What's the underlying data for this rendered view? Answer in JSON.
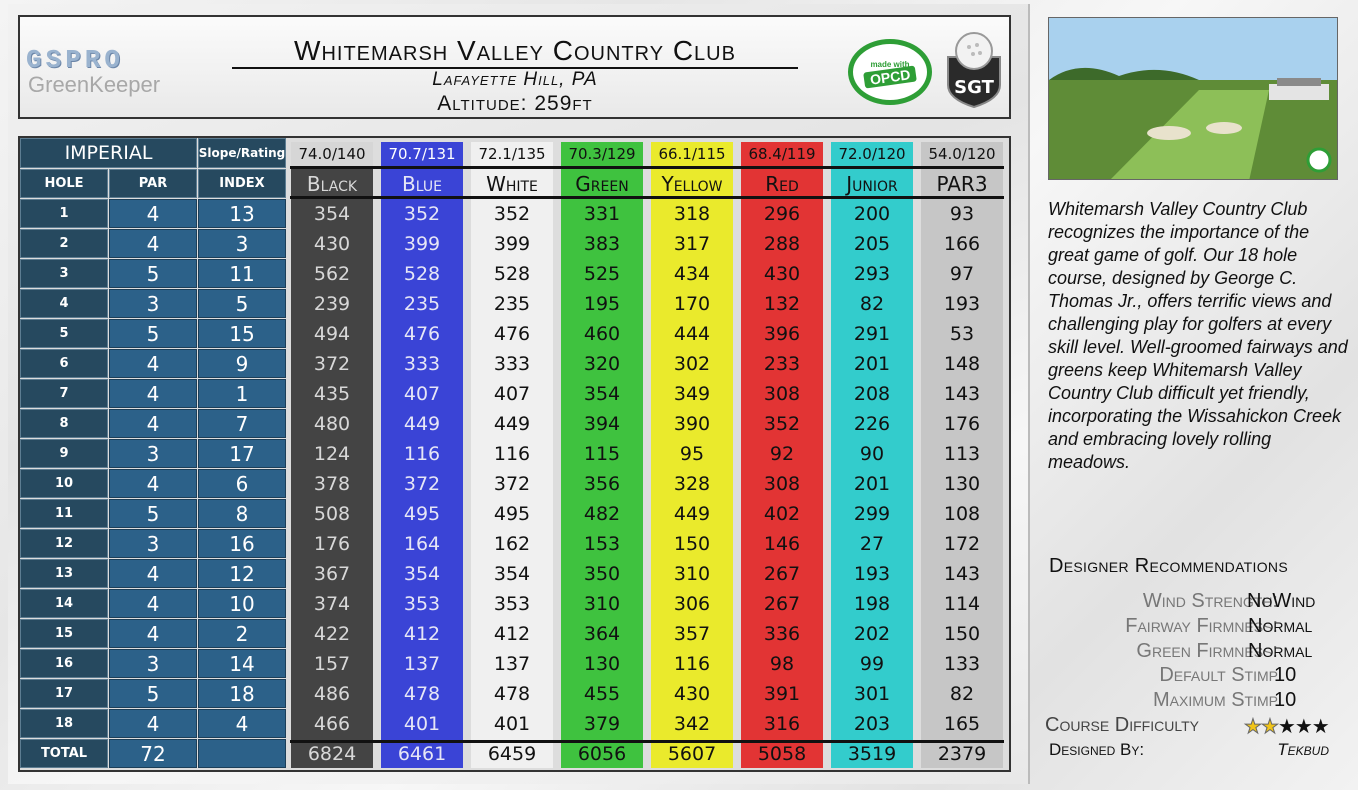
{
  "header": {
    "logo_gspro": "GSPRO",
    "logo_greenkeeper": "GreenKeeper",
    "title": "Whitemarsh Valley Country Club",
    "location": "Lafayette Hill, PA",
    "altitude": "Altitude: 259ft",
    "opcd_top": "made with",
    "opcd_mid": "OPCD",
    "sgt_label": "SGT"
  },
  "scorecard": {
    "units_label": "IMPERIAL",
    "slope_rating_label": "Slope/Rating",
    "hole_header": "HOLE",
    "par_header": "PAR",
    "index_header": "INDEX",
    "total_label": "TOTAL",
    "total_par": "72",
    "holes": [
      "1",
      "2",
      "3",
      "4",
      "5",
      "6",
      "7",
      "8",
      "9",
      "10",
      "11",
      "12",
      "13",
      "14",
      "15",
      "16",
      "17",
      "18"
    ],
    "pars": [
      "4",
      "4",
      "5",
      "3",
      "5",
      "4",
      "4",
      "4",
      "3",
      "4",
      "5",
      "3",
      "4",
      "4",
      "4",
      "3",
      "5",
      "4"
    ],
    "indexes": [
      "13",
      "3",
      "11",
      "5",
      "15",
      "9",
      "1",
      "7",
      "17",
      "6",
      "8",
      "16",
      "12",
      "10",
      "2",
      "14",
      "18",
      "4"
    ],
    "tees": [
      {
        "name": "Black",
        "rating": "74.0/140",
        "bg": "#444444",
        "fg": "#d8d8d8",
        "rating_bg": "#d6d6d6",
        "rating_fg": "#111111",
        "yards": [
          "354",
          "430",
          "562",
          "239",
          "494",
          "372",
          "435",
          "480",
          "124",
          "378",
          "508",
          "176",
          "367",
          "374",
          "422",
          "157",
          "486",
          "466"
        ],
        "total": "6824"
      },
      {
        "name": "Blue",
        "rating": "70.7/131",
        "bg": "#3a44d6",
        "fg": "#e6e6f6",
        "rating_bg": "#3a44d6",
        "rating_fg": "#ffffff",
        "yards": [
          "352",
          "399",
          "528",
          "235",
          "476",
          "333",
          "407",
          "449",
          "116",
          "372",
          "495",
          "164",
          "354",
          "353",
          "412",
          "137",
          "478",
          "401"
        ],
        "total": "6461"
      },
      {
        "name": "White",
        "rating": "72.1/135",
        "bg": "#f0f0f0",
        "fg": "#111111",
        "rating_bg": "#f0f0f0",
        "rating_fg": "#111111",
        "yards": [
          "352",
          "399",
          "528",
          "235",
          "476",
          "333",
          "407",
          "449",
          "116",
          "372",
          "495",
          "162",
          "354",
          "353",
          "412",
          "137",
          "478",
          "401"
        ],
        "total": "6459"
      },
      {
        "name": "Green",
        "rating": "70.3/129",
        "bg": "#3fc23f",
        "fg": "#111111",
        "rating_bg": "#3fc23f",
        "rating_fg": "#111111",
        "yards": [
          "331",
          "383",
          "525",
          "195",
          "460",
          "320",
          "354",
          "394",
          "115",
          "356",
          "482",
          "153",
          "350",
          "310",
          "364",
          "130",
          "455",
          "379"
        ],
        "total": "6056"
      },
      {
        "name": "Yellow",
        "rating": "66.1/115",
        "bg": "#eaea2c",
        "fg": "#111111",
        "rating_bg": "#eaea2c",
        "rating_fg": "#111111",
        "yards": [
          "318",
          "317",
          "434",
          "170",
          "444",
          "302",
          "349",
          "390",
          "95",
          "328",
          "449",
          "150",
          "310",
          "306",
          "357",
          "116",
          "430",
          "342"
        ],
        "total": "5607"
      },
      {
        "name": "Red",
        "rating": "68.4/119",
        "bg": "#e23434",
        "fg": "#111111",
        "rating_bg": "#e23434",
        "rating_fg": "#111111",
        "yards": [
          "296",
          "288",
          "430",
          "132",
          "396",
          "233",
          "308",
          "352",
          "92",
          "308",
          "402",
          "146",
          "267",
          "267",
          "336",
          "98",
          "391",
          "316"
        ],
        "total": "5058"
      },
      {
        "name": "Junior",
        "rating": "72.0/120",
        "bg": "#33cccc",
        "fg": "#111111",
        "rating_bg": "#33cccc",
        "rating_fg": "#111111",
        "yards": [
          "200",
          "205",
          "293",
          "82",
          "291",
          "201",
          "208",
          "226",
          "90",
          "201",
          "299",
          "27",
          "193",
          "198",
          "202",
          "99",
          "301",
          "203"
        ],
        "total": "3519"
      },
      {
        "name": "PAR3",
        "rating": "54.0/120",
        "bg": "#c6c6c6",
        "fg": "#111111",
        "rating_bg": "#c6c6c6",
        "rating_fg": "#111111",
        "yards": [
          "93",
          "166",
          "97",
          "193",
          "53",
          "148",
          "143",
          "176",
          "113",
          "130",
          "108",
          "172",
          "143",
          "114",
          "150",
          "133",
          "82",
          "165"
        ],
        "total": "2379"
      }
    ]
  },
  "sidebar": {
    "description": "Whitemarsh Valley Country Club recognizes the importance of the great game of golf.  Our 18 hole course, designed by George C. Thomas Jr., offers terrific views and challenging play for golfers at every skill level. Well-groomed fairways and greens keep Whitemarsh Valley Country Club difficult yet friendly, incorporating the Wissahickon Creek and embracing lovely rolling meadows.",
    "recommendations_title": "Designer Recommendations",
    "wind_label": "Wind Strength:",
    "wind_value": "NoWind",
    "fairway_label": "Fairway Firmness:",
    "fairway_value": "Normal",
    "green_label": "Green Firmness:",
    "green_value": "Normal",
    "default_stimp_label": "Default Stimp",
    "default_stimp_value": "10",
    "max_stimp_label": "Maximum Stimp",
    "max_stimp_value": "10",
    "difficulty_label": "Course Difficulty",
    "difficulty_stars": 2,
    "difficulty_max": 5,
    "designed_by_label": "Designed By:",
    "designed_by_value": "Tekbud"
  }
}
